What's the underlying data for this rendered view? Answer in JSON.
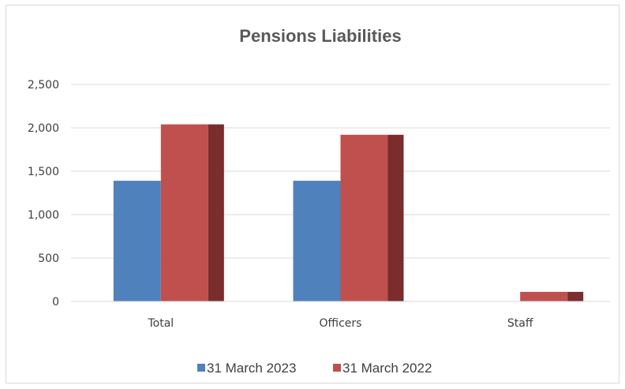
{
  "chart_data": {
    "type": "bar",
    "title": "Pensions Liabilities",
    "categories": [
      "Total",
      "Officers",
      "Staff"
    ],
    "series": [
      {
        "name": "31 March 2023",
        "values": [
          1390,
          1390,
          0
        ],
        "color": "#4f81bd",
        "shade": "#4f81bd"
      },
      {
        "name": "31 March 2022",
        "values": [
          2040,
          1920,
          110
        ],
        "color": "#c0504d",
        "shade": "#7b2c2c"
      }
    ],
    "yticks": [
      "0",
      "500",
      "1,000",
      "1,500",
      "2,000",
      "2,500"
    ],
    "ylim": [
      0,
      2500
    ],
    "grid": true,
    "legend": "bottom"
  }
}
